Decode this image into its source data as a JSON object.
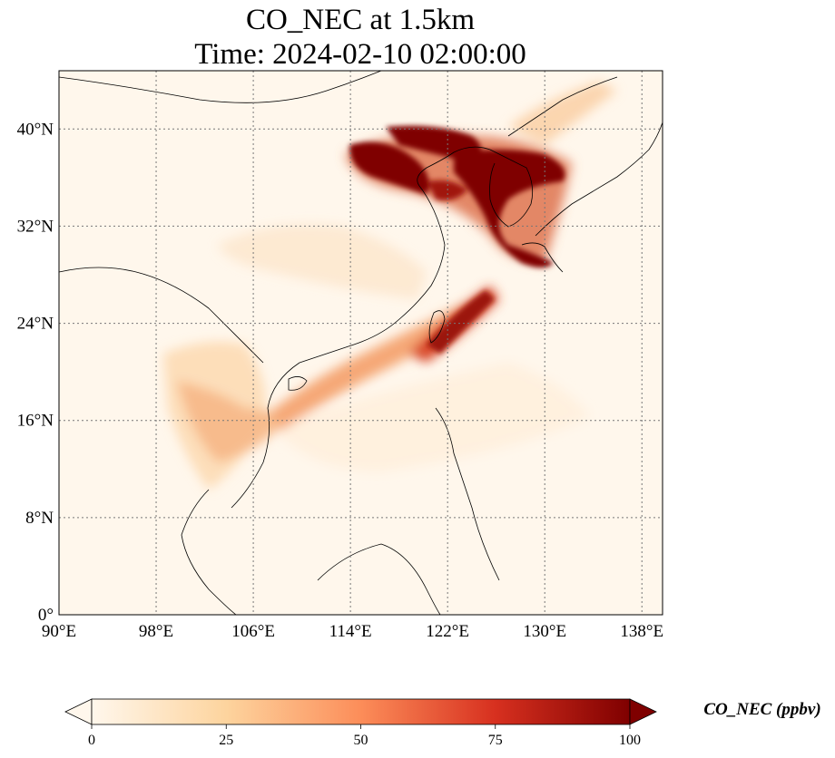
{
  "title": {
    "line1": "CO_NEC at 1.5km",
    "line2": "Time: 2024-02-10 02:00:00"
  },
  "map": {
    "lon_ticks": [
      {
        "value": 90,
        "label": "90°E"
      },
      {
        "value": 98,
        "label": "98°E"
      },
      {
        "value": 106,
        "label": "106°E"
      },
      {
        "value": 114,
        "label": "114°E"
      },
      {
        "value": 122,
        "label": "122°E"
      },
      {
        "value": 130,
        "label": "130°E"
      },
      {
        "value": 138,
        "label": "138°E"
      }
    ],
    "lat_ticks": [
      {
        "value": 0,
        "label": "0°"
      },
      {
        "value": 8,
        "label": "8°N"
      },
      {
        "value": 16,
        "label": "16°N"
      },
      {
        "value": 24,
        "label": "24°N"
      },
      {
        "value": 32,
        "label": "32°N"
      },
      {
        "value": 40,
        "label": "40°N"
      }
    ],
    "lon_range": [
      90,
      139.7
    ],
    "lat_range": [
      0,
      44.8
    ],
    "gridlines": "dotted",
    "colormap": "OrRd",
    "colormap_stops": [
      "#fff7ec",
      "#fdd49e",
      "#fc8d59",
      "#d7301f",
      "#7f0000"
    ]
  },
  "colorbar": {
    "label": "CO_NEC (ppbv)",
    "min": 0,
    "max": 100,
    "extend": "both",
    "ticks": [
      {
        "value": 0,
        "label": "0"
      },
      {
        "value": 25,
        "label": "25"
      },
      {
        "value": 50,
        "label": "50"
      },
      {
        "value": 75,
        "label": "75"
      },
      {
        "value": 100,
        "label": "100"
      }
    ]
  }
}
